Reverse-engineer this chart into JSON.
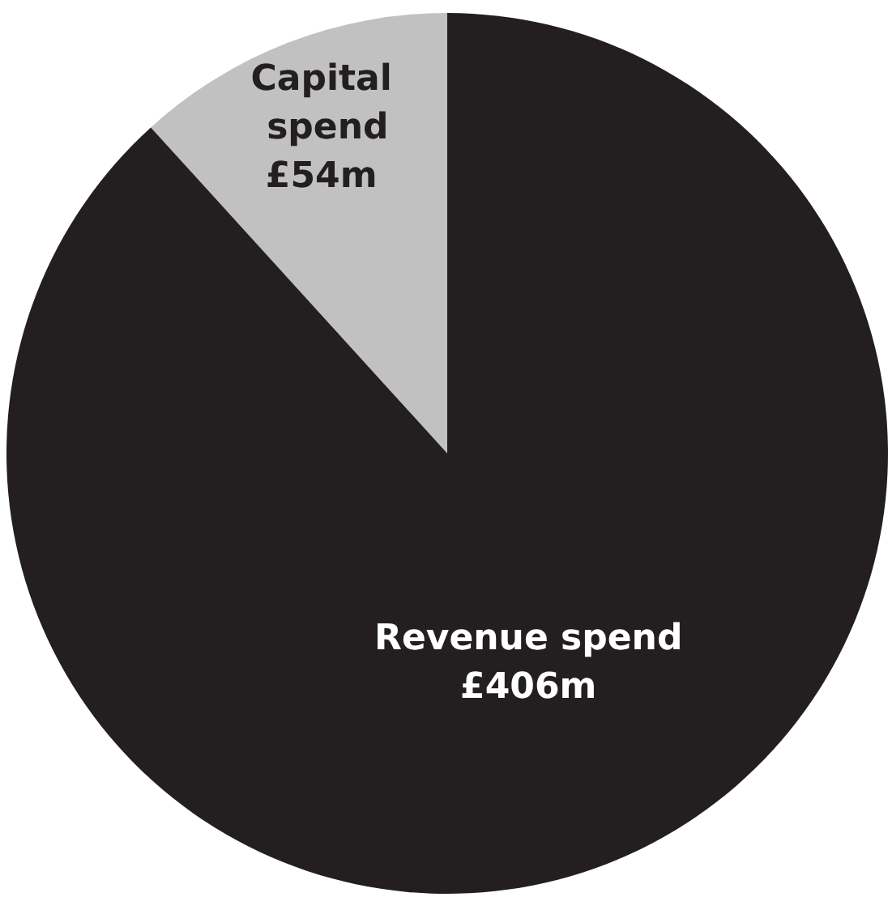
{
  "chart_data": {
    "type": "pie",
    "categories": [
      "Capital spend",
      "Revenue spend"
    ],
    "values": [
      54,
      406
    ],
    "value_labels": [
      "£54m",
      "£406m"
    ],
    "colors": [
      "#c1c1c2",
      "#231f20"
    ],
    "legend": false
  }
}
